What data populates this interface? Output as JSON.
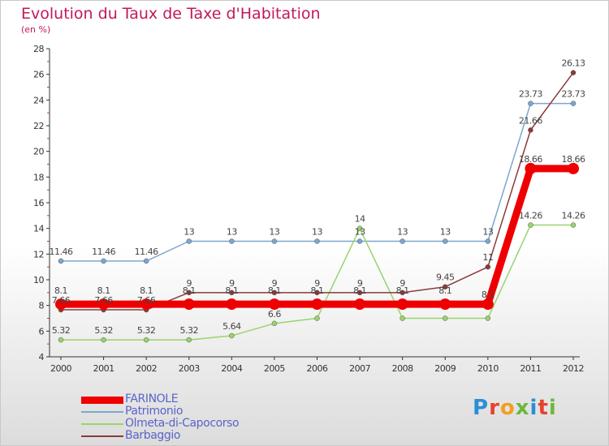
{
  "title": "Evolution du Taux de Taxe d'Habitation",
  "subtitle": "(en %)",
  "logo": {
    "text": "Proxiti",
    "colors": [
      "#2a8fd6",
      "#e8412c",
      "#f0a020",
      "#6cb83c",
      "#2a8fd6",
      "#e8412c",
      "#6cb83c"
    ]
  },
  "chart_data": {
    "type": "line",
    "x": [
      2000,
      2001,
      2002,
      2003,
      2004,
      2005,
      2006,
      2007,
      2008,
      2009,
      2010,
      2011,
      2012
    ],
    "ylim": [
      4,
      28
    ],
    "yticks": [
      4,
      6,
      8,
      10,
      12,
      14,
      16,
      18,
      20,
      22,
      24,
      26,
      28
    ],
    "grid": false,
    "legend": "bottom-left",
    "series": [
      {
        "name": "FARINOLE",
        "color": "#ee0000",
        "values": [
          8.1,
          8.1,
          8.1,
          8.1,
          8.1,
          8.1,
          8.1,
          8.1,
          8.1,
          8.1,
          8.1,
          18.66,
          18.66
        ],
        "labels": [
          "",
          "",
          "",
          "",
          "",
          "",
          "",
          "",
          "",
          "",
          "8.1",
          "18.66",
          "18.66"
        ]
      },
      {
        "name": "Patrimonio",
        "color": "#7ba7cf",
        "values": [
          11.46,
          11.46,
          11.46,
          13,
          13,
          13,
          13,
          13,
          13,
          13,
          13,
          23.73,
          23.73
        ],
        "labels": [
          "11.46",
          "11.46",
          "11.46",
          "13",
          "13",
          "13",
          "13",
          "13",
          "13",
          "13",
          "13",
          "23.73",
          "23.73"
        ]
      },
      {
        "name": "Olmeta-di-Capocorso",
        "color": "#99d36b",
        "values": [
          5.32,
          5.32,
          5.32,
          5.32,
          5.64,
          6.6,
          7,
          14,
          7,
          7,
          7,
          14.26,
          14.26
        ],
        "labels": [
          "5.32",
          "5.32",
          "5.32",
          "5.32",
          "5.64",
          "6.6",
          "",
          "14",
          "",
          "",
          "",
          "14.26",
          "14.26"
        ]
      },
      {
        "name": "Barbaggio",
        "color": "#8b3a3a",
        "values": [
          7.66,
          7.66,
          7.66,
          9,
          9,
          9,
          9,
          9,
          9,
          9.45,
          11,
          21.66,
          26.13
        ],
        "labels": [
          "7.66",
          "7.66",
          "7.66",
          "9",
          "9",
          "9",
          "9",
          "9",
          "9",
          "9.45",
          "11",
          "21.66",
          "26.13"
        ]
      }
    ],
    "extra_labels": [
      {
        "x": 2000,
        "text": "8.1"
      },
      {
        "x": 2001,
        "text": "8.1"
      },
      {
        "x": 2002,
        "text": "8.1"
      },
      {
        "x": 2003,
        "text": "8.1"
      },
      {
        "x": 2004,
        "text": "8.1"
      },
      {
        "x": 2005,
        "text": "8.1"
      },
      {
        "x": 2006,
        "text": "8.1"
      },
      {
        "x": 2007,
        "text": "8.1"
      },
      {
        "x": 2008,
        "text": "8.1"
      },
      {
        "x": 2009,
        "text": "8.1"
      }
    ]
  }
}
